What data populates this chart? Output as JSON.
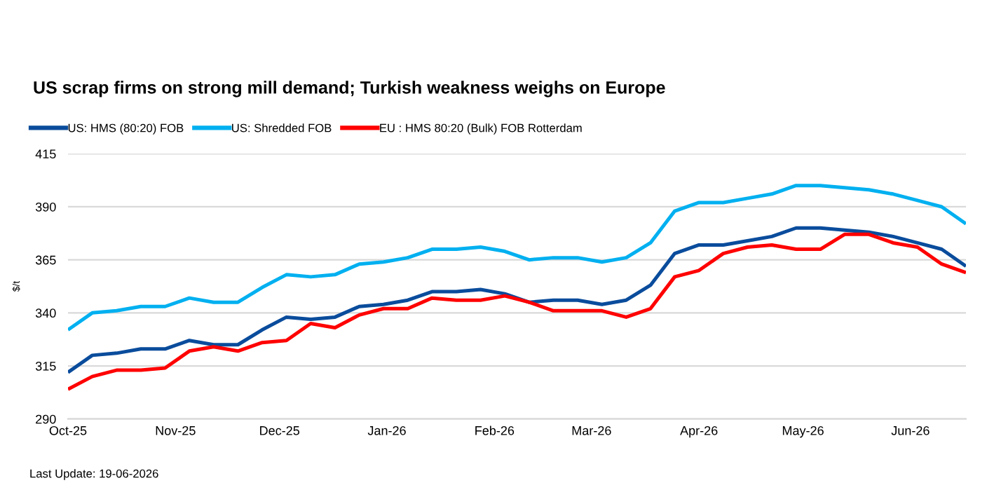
{
  "chart_data": {
    "type": "line",
    "title": "US scrap firms on strong mill demand; Turkish weakness weighs on Europe",
    "ylabel": "$/t",
    "annotations": [
      "Last Update: 19-06-2026"
    ],
    "x": [
      "2025-10-01",
      "2025-10-08",
      "2025-10-15",
      "2025-10-22",
      "2025-10-29",
      "2025-11-05",
      "2025-11-12",
      "2025-11-19",
      "2025-11-26",
      "2025-12-03",
      "2025-12-10",
      "2025-12-17",
      "2025-12-24",
      "2025-12-31",
      "2026-01-07",
      "2026-01-14",
      "2026-01-21",
      "2026-01-28",
      "2026-02-04",
      "2026-02-11",
      "2026-02-18",
      "2026-02-25",
      "2026-03-04",
      "2026-03-11",
      "2026-03-18",
      "2026-03-25",
      "2026-04-01",
      "2026-04-08",
      "2026-04-15",
      "2026-04-22",
      "2026-04-29",
      "2026-05-06",
      "2026-05-13",
      "2026-05-20",
      "2026-05-27",
      "2026-06-03",
      "2026-06-10",
      "2026-06-17"
    ],
    "series": [
      {
        "name": "US: HMS (80:20) FOB",
        "color": "#0a4c9c",
        "values": [
          312,
          320,
          321,
          323,
          323,
          327,
          325,
          325,
          332,
          338,
          337,
          338,
          343,
          344,
          346,
          350,
          350,
          351,
          349,
          345,
          346,
          346,
          344,
          346,
          353,
          368,
          372,
          372,
          374,
          376,
          380,
          380,
          379,
          378,
          376,
          373,
          370,
          362
        ]
      },
      {
        "name": "US: Shredded FOB",
        "color": "#00b0f0",
        "values": [
          332,
          340,
          341,
          343,
          343,
          347,
          345,
          345,
          352,
          358,
          357,
          358,
          363,
          364,
          366,
          370,
          370,
          371,
          369,
          365,
          366,
          366,
          364,
          366,
          373,
          388,
          392,
          392,
          394,
          396,
          400,
          400,
          399,
          398,
          396,
          393,
          390,
          382
        ]
      },
      {
        "name": "EU : HMS 80:20 (Bulk) FOB Rotterdam",
        "color": "#ff0000",
        "values": [
          304,
          310,
          313,
          313,
          314,
          322,
          324,
          322,
          326,
          327,
          335,
          333,
          339,
          342,
          342,
          347,
          346,
          346,
          348,
          345,
          341,
          341,
          341,
          338,
          342,
          357,
          360,
          368,
          371,
          372,
          370,
          370,
          377,
          377,
          373,
          371,
          363,
          359
        ]
      }
    ],
    "xlim": [
      "2025-10-01",
      "2026-06-17"
    ],
    "xticks": [
      {
        "value": "2025-10-01",
        "label": "Oct-25"
      },
      {
        "value": "2025-11-01",
        "label": "Nov-25"
      },
      {
        "value": "2025-12-01",
        "label": "Dec-25"
      },
      {
        "value": "2026-01-01",
        "label": "Jan-26"
      },
      {
        "value": "2026-02-01",
        "label": "Feb-26"
      },
      {
        "value": "2026-03-01",
        "label": "Mar-26"
      },
      {
        "value": "2026-04-01",
        "label": "Apr-26"
      },
      {
        "value": "2026-05-01",
        "label": "May-26"
      },
      {
        "value": "2026-06-01",
        "label": "Jun-26"
      }
    ],
    "ylim": [
      290,
      415
    ],
    "yticks": [
      290,
      315,
      340,
      365,
      390,
      415
    ],
    "grid": "y",
    "legend": "top left",
    "line_style": "solid"
  }
}
